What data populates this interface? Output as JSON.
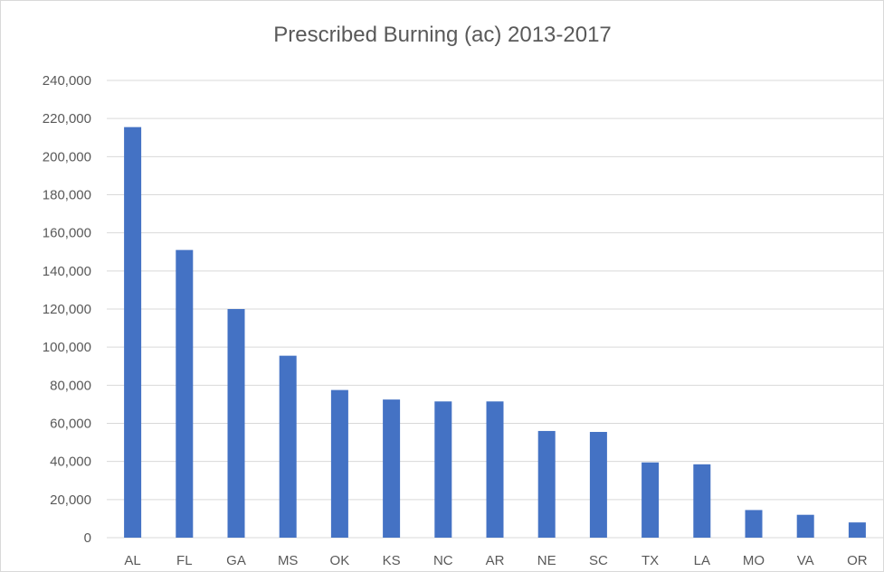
{
  "chart_data": {
    "type": "bar",
    "title": "Prescribed Burning (ac) 2013-2017",
    "xlabel": "",
    "ylabel": "",
    "categories": [
      "AL",
      "FL",
      "GA",
      "MS",
      "OK",
      "KS",
      "NC",
      "AR",
      "NE",
      "SC",
      "TX",
      "LA",
      "MO",
      "VA",
      "OR"
    ],
    "values": [
      215500,
      151000,
      120000,
      95500,
      77500,
      72500,
      71500,
      71500,
      56000,
      55500,
      39500,
      38500,
      14500,
      12000,
      8000
    ],
    "ylim": [
      0,
      240000
    ],
    "yticks": [
      "0",
      "20,000",
      "40,000",
      "60,000",
      "80,000",
      "100,000",
      "120,000",
      "140,000",
      "160,000",
      "180,000",
      "200,000",
      "220,000",
      "240,000"
    ],
    "grid": true,
    "legend": "none",
    "colors": {
      "bar": "#4472C4",
      "grid": "#d9d9d9",
      "text": "#595959"
    }
  }
}
